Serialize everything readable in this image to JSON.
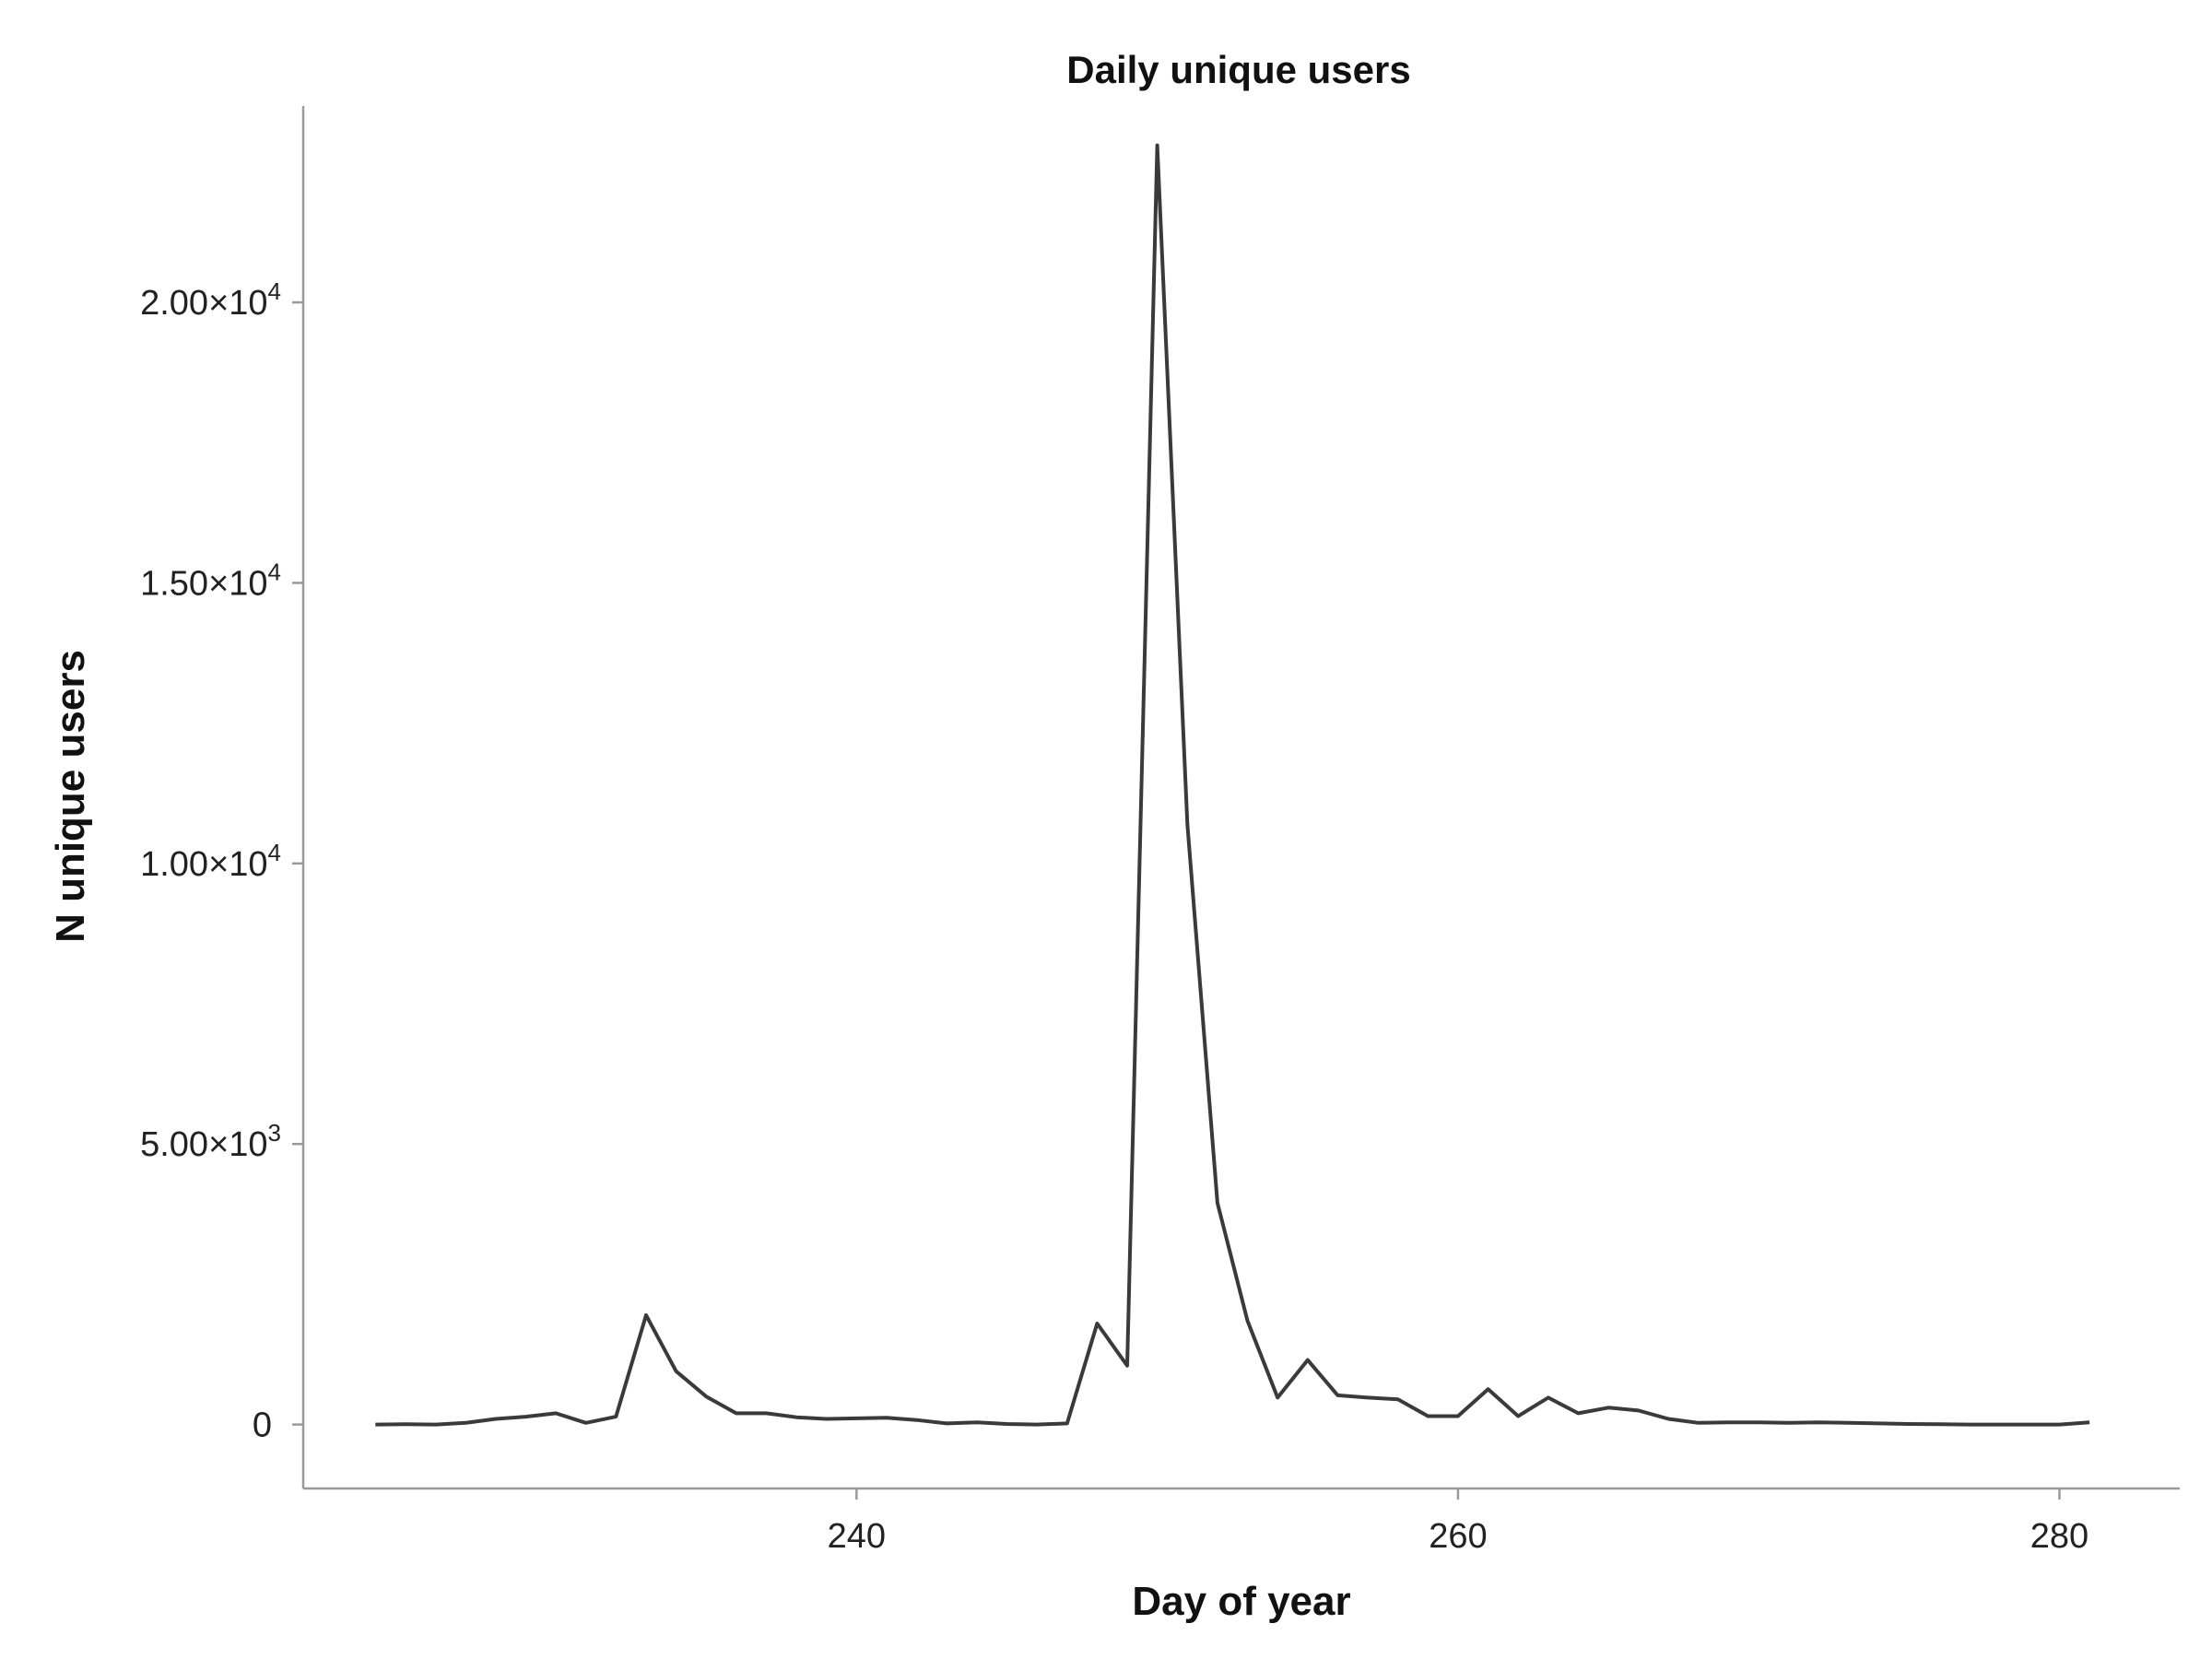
{
  "chart_data": {
    "type": "line",
    "title": "Daily unique users",
    "xlabel": "Day of year",
    "ylabel": "N unique users",
    "xlim": [
      221.6,
      284
    ],
    "ylim": [
      -1140,
      23500
    ],
    "xticks": [
      {
        "value": 240,
        "label": "240"
      },
      {
        "value": 260,
        "label": "260"
      },
      {
        "value": 280,
        "label": "280"
      }
    ],
    "yticks": [
      {
        "value": 0,
        "label": "0",
        "sup": ""
      },
      {
        "value": 5000,
        "label": "5.00×10",
        "sup": "3"
      },
      {
        "value": 10000,
        "label": "1.00×10",
        "sup": "4"
      },
      {
        "value": 15000,
        "label": "1.50×10",
        "sup": "4"
      },
      {
        "value": 20000,
        "label": "2.00×10",
        "sup": "4"
      }
    ],
    "grid": false,
    "legend": "none",
    "line_color": "#3a3a3a",
    "series": [
      {
        "x": [
          224,
          225,
          226,
          227,
          228,
          229,
          230,
          231,
          232,
          233,
          234,
          235,
          236,
          237,
          238,
          239,
          240,
          241,
          242,
          243,
          244,
          245,
          246,
          247,
          248,
          249,
          250,
          251,
          252,
          253,
          254,
          255,
          256,
          257,
          258,
          259,
          260,
          261,
          262,
          263,
          264,
          265,
          266,
          267,
          268,
          269,
          270,
          271,
          272,
          273,
          274,
          275,
          276,
          277,
          278,
          279,
          280,
          281
        ],
        "y": [
          0,
          5,
          0,
          30,
          100,
          140,
          200,
          30,
          140,
          1950,
          950,
          500,
          200,
          200,
          130,
          100,
          110,
          120,
          80,
          20,
          40,
          10,
          0,
          20,
          1800,
          1050,
          22800,
          10700,
          3950,
          1850,
          480,
          1150,
          520,
          480,
          450,
          150,
          150,
          630,
          150,
          480,
          200,
          300,
          250,
          100,
          30,
          40,
          40,
          30,
          40,
          30,
          20,
          10,
          5,
          0,
          0,
          0,
          0,
          40
        ]
      }
    ]
  }
}
